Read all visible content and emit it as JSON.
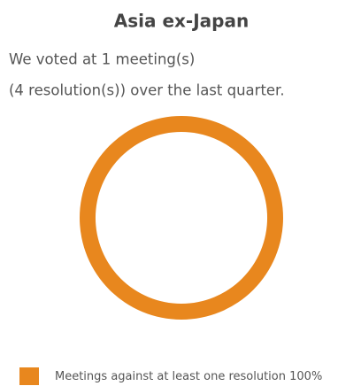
{
  "chart_data": {
    "type": "donut",
    "title": "Asia ex-Japan",
    "subtitle": [
      "We voted at 1 meeting(s)",
      "(4 resolution(s)) over the last quarter."
    ],
    "categories": [
      "Meetings against at least one resolution"
    ],
    "values": [
      100
    ],
    "value_labels": [
      "100%"
    ],
    "colors": [
      "#e8871e"
    ]
  }
}
